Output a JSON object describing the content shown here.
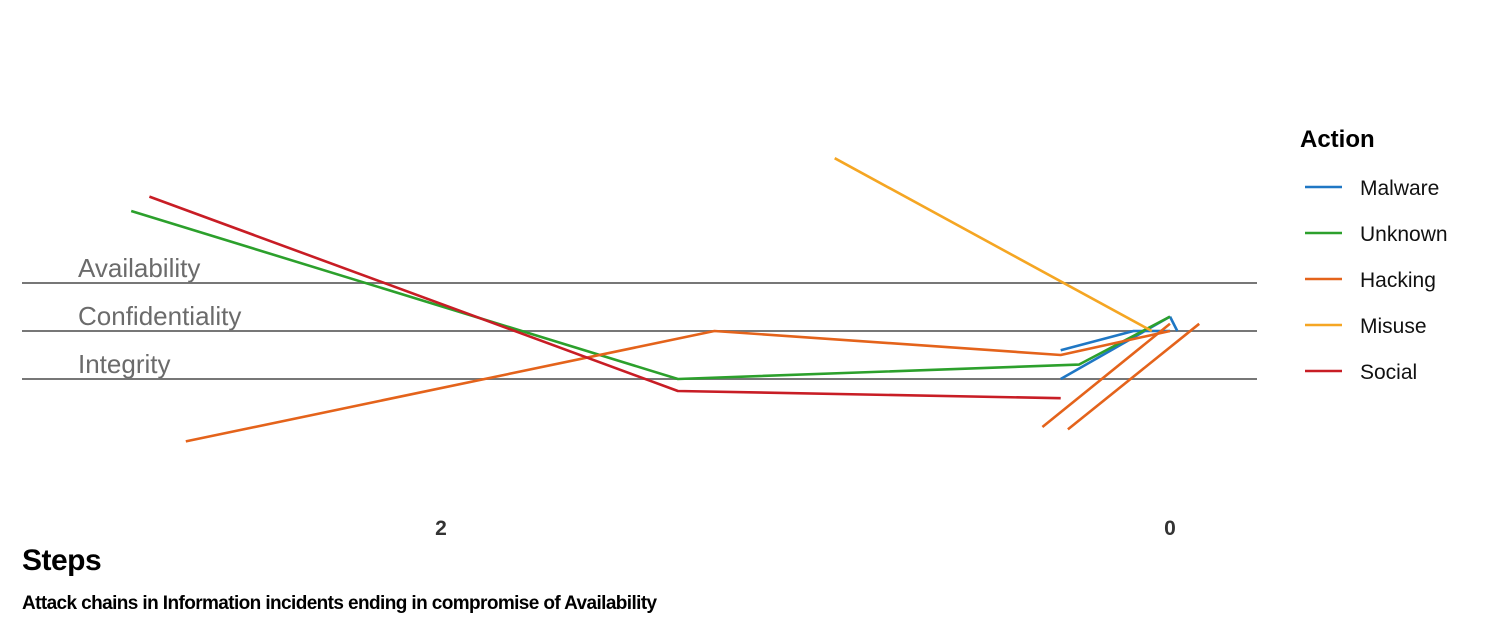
{
  "chart_data": {
    "type": "line",
    "title": "Attack chains in Information incidents ending in compromise of Availability",
    "xlabel": "Steps",
    "x_ticks": [
      "2",
      "0"
    ],
    "y_levels": [
      "Availability",
      "Confidentiality",
      "Integrity"
    ],
    "legend": {
      "title": "Action",
      "placement": "right"
    },
    "grid": true,
    "series": [
      {
        "name": "Malware",
        "color": "#1f77c4",
        "paths": [
          [
            [
              0.3,
              0.6
            ],
            [
              0.1,
              1.0
            ],
            [
              0.0,
              1.0
            ]
          ],
          [
            [
              0.3,
              0.0
            ],
            [
              0.0,
              1.3
            ]
          ],
          [
            [
              0.0,
              1.3
            ],
            [
              -0.02,
              1.0
            ]
          ]
        ]
      },
      {
        "name": "Unknown",
        "color": "#2ca02c",
        "paths": [
          [
            [
              2.85,
              3.5
            ],
            [
              1.35,
              0.0
            ],
            [
              0.25,
              0.3
            ],
            [
              0.0,
              1.3
            ]
          ]
        ]
      },
      {
        "name": "Hacking",
        "color": "#e4631b",
        "paths": [
          [
            [
              2.7,
              -1.3
            ],
            [
              1.25,
              1.0
            ],
            [
              0.3,
              0.5
            ],
            [
              0.0,
              1.0
            ]
          ],
          [
            [
              0.35,
              -1.0
            ],
            [
              0.0,
              1.15
            ]
          ],
          [
            [
              0.28,
              -1.05
            ],
            [
              -0.08,
              1.15
            ]
          ]
        ]
      },
      {
        "name": "Misuse",
        "color": "#f5a623",
        "paths": [
          [
            [
              0.92,
              4.6
            ],
            [
              0.05,
              1.0
            ]
          ]
        ]
      },
      {
        "name": "Social",
        "color": "#c81d25",
        "paths": [
          [
            [
              2.8,
              3.8
            ],
            [
              1.35,
              -0.25
            ],
            [
              0.3,
              -0.4
            ]
          ]
        ]
      }
    ]
  }
}
